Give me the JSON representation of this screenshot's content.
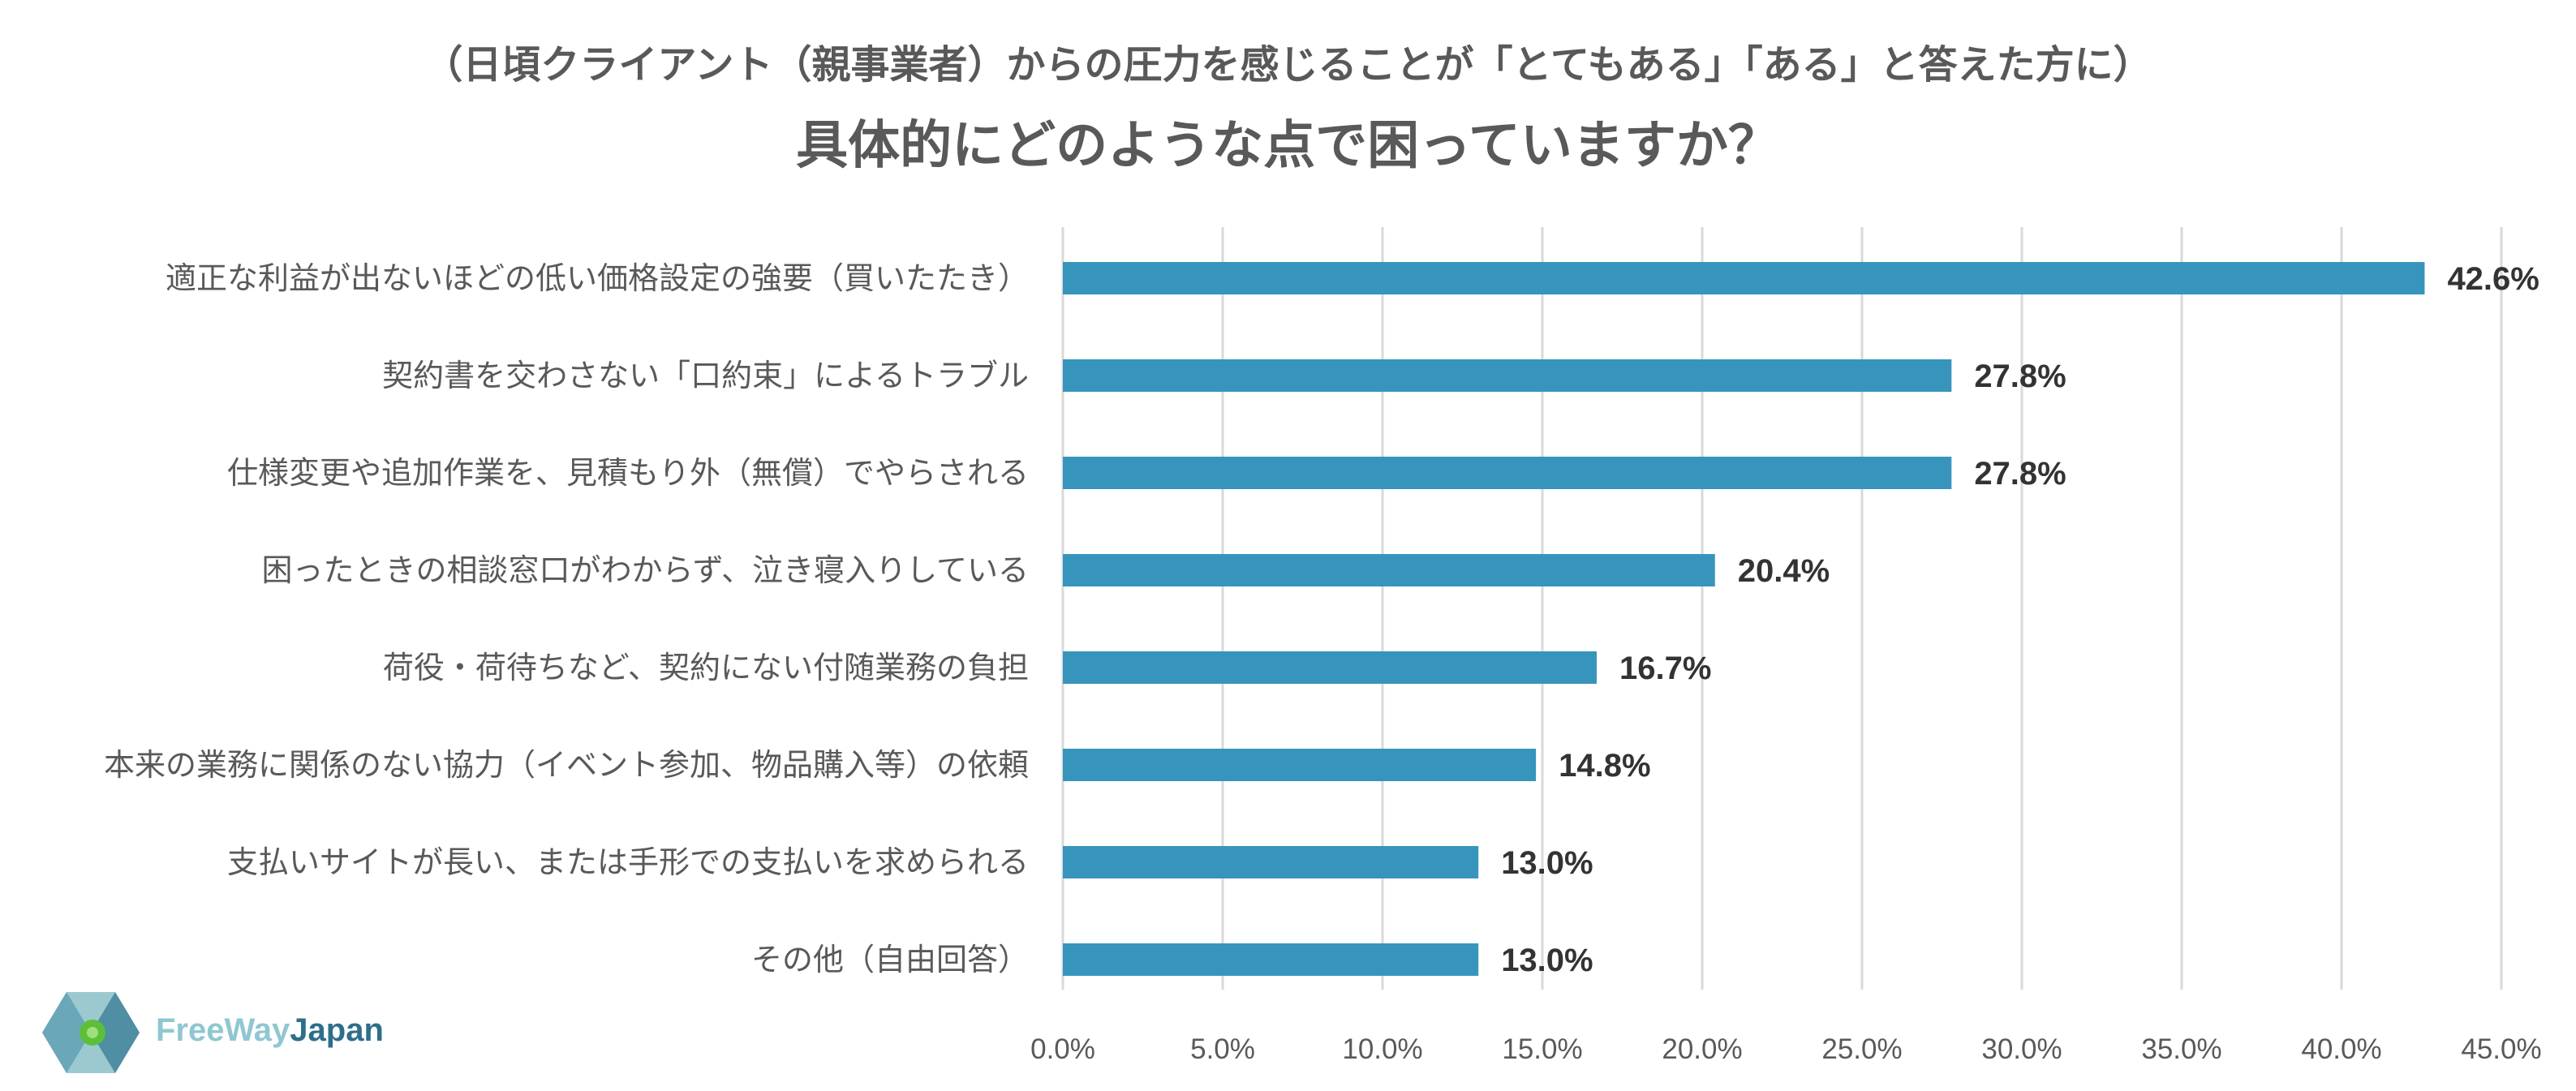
{
  "header": {
    "subtitle": "（日頃クライアント（親事業者）からの圧力を感じることが「とてもある」「ある」と答えた方に）",
    "title": "具体的にどのような点で困っていますか？"
  },
  "chart_data": {
    "type": "bar",
    "orientation": "horizontal",
    "categories": [
      "適正な利益が出ないほどの低い価格設定の強要（買いたたき）",
      "契約書を交わさない「口約束」によるトラブル",
      "仕様変更や追加作業を、見積もり外（無償）でやらされる",
      "困ったときの相談窓口がわからず、泣き寝入りしている",
      "荷役・荷待ちなど、契約にない付随業務の負担",
      "本来の業務に関係のない協力（イベント参加、物品購入等）の依頼",
      "支払いサイトが長い、または手形での支払いを求められる",
      "その他（自由回答）"
    ],
    "values": [
      42.6,
      27.8,
      27.8,
      20.4,
      16.7,
      14.8,
      13.0,
      13.0
    ],
    "value_labels": [
      "42.6%",
      "27.8%",
      "27.8%",
      "20.4%",
      "16.7%",
      "14.8%",
      "13.0%",
      "13.0%"
    ],
    "xticks": [
      0,
      5,
      10,
      15,
      20,
      25,
      30,
      35,
      40,
      45
    ],
    "xtick_labels": [
      "0.0%",
      "5.0%",
      "10.0%",
      "15.0%",
      "20.0%",
      "25.0%",
      "30.0%",
      "35.0%",
      "40.0%",
      "45.0%"
    ],
    "xlim": [
      0,
      45
    ],
    "grid": true,
    "bar_color": "#3795bd",
    "grid_color": "#d9d9d9"
  },
  "logo": {
    "part1": "FreeWay",
    "part2": "Japan",
    "color_light": "#8fc7d1",
    "color_dark": "#2e6e8a"
  }
}
